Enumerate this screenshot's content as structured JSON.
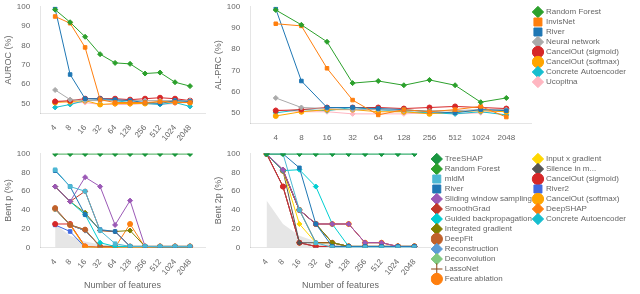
{
  "chart_data": [
    {
      "type": "line",
      "y_label": "AUROC (%)",
      "x": [
        4,
        8,
        16,
        32,
        64,
        128,
        256,
        512,
        1024,
        2048
      ],
      "xlim": [
        2,
        4096
      ],
      "xticks": [
        4,
        8,
        16,
        32,
        64,
        128,
        256,
        512,
        1024,
        2048
      ],
      "ylim": [
        45,
        100
      ],
      "yticks": [
        50,
        60,
        70,
        80,
        90,
        100
      ],
      "log": "x",
      "grid": false,
      "series": [
        {
          "name": "Random Forest",
          "color": "#2ca02c",
          "marker": "diamond",
          "values": [
            98.5,
            92.0,
            84.5,
            75.5,
            71.0,
            70.5,
            65.5,
            66.0,
            61.0,
            59.0
          ]
        },
        {
          "name": "InvisNet",
          "color": "#ff7f0e",
          "marker": "square",
          "values": [
            95.0,
            91.5,
            79.0,
            52.0,
            50.5,
            50.5,
            50.5,
            51.0,
            50.5,
            50.5
          ]
        },
        {
          "name": "River",
          "color": "#1f77b4",
          "marker": "square",
          "values": [
            99.0,
            65.0,
            52.5,
            52.5,
            52.0,
            51.5,
            50.5,
            50.0,
            51.5,
            51.0
          ]
        },
        {
          "name": "Neural network",
          "color": "#aaaaaa",
          "marker": "diamond",
          "values": [
            57.0,
            52.0,
            51.5,
            51.5,
            51.5,
            51.5,
            51.5,
            51.5,
            51.5,
            51.5
          ]
        },
        {
          "name": "CancelOut (sigmoid)",
          "color": "#d62728",
          "marker": "circle",
          "values": [
            51.0,
            51.5,
            52.5,
            52.5,
            52.5,
            52.0,
            52.5,
            53.0,
            52.5,
            51.5
          ]
        },
        {
          "name": "CancelOut (softmax)",
          "color": "#ffa500",
          "marker": "circle",
          "values": [
            50.5,
            51.0,
            51.5,
            49.5,
            50.0,
            50.0,
            50.0,
            51.0,
            51.0,
            50.5
          ]
        },
        {
          "name": "Concrete Autoencoder",
          "color": "#17becf",
          "marker": "diamond",
          "values": [
            48.0,
            49.5,
            51.5,
            52.0,
            51.5,
            50.5,
            50.0,
            49.5,
            50.5,
            48.5
          ]
        },
        {
          "name": "Ucopitna",
          "color": "#ffb6c1",
          "marker": "diamond",
          "values": [
            51.5,
            50.5,
            50.5,
            49.5,
            49.5,
            49.5,
            50.0,
            49.5,
            50.0,
            51.0
          ]
        }
      ]
    },
    {
      "type": "line",
      "y_label": "AL-PRC (%)",
      "x": [
        4,
        8,
        16,
        32,
        64,
        128,
        256,
        512,
        1024,
        2048
      ],
      "xlim": [
        2,
        4096
      ],
      "xticks": [
        4,
        8,
        16,
        32,
        64,
        128,
        256,
        512,
        1024,
        2048
      ],
      "ylim": [
        45,
        100
      ],
      "yticks": [
        50,
        60,
        70,
        80,
        90,
        100
      ],
      "log": "x",
      "grid": false,
      "legend": "right",
      "series": [
        {
          "name": "Random Forest",
          "color": "#2ca02c",
          "marker": "diamond",
          "values": [
            98.5,
            91.5,
            83.5,
            64.0,
            65.0,
            63.0,
            65.5,
            63.0,
            55.0,
            57.0
          ]
        },
        {
          "name": "InvisNet",
          "color": "#ff7f0e",
          "marker": "square",
          "values": [
            92.0,
            91.0,
            71.0,
            56.0,
            49.0,
            51.5,
            50.5,
            51.5,
            53.0,
            48.0
          ]
        },
        {
          "name": "River",
          "color": "#1f77b4",
          "marker": "square",
          "values": [
            99.0,
            65.0,
            52.5,
            52.5,
            52.0,
            51.5,
            50.5,
            50.0,
            51.5,
            51.0
          ]
        },
        {
          "name": "Neural network",
          "color": "#aaaaaa",
          "marker": "diamond",
          "values": [
            57.0,
            52.5,
            52.0,
            51.5,
            51.5,
            51.0,
            51.0,
            51.0,
            51.5,
            51.5
          ]
        },
        {
          "name": "CancelOut (sigmoid)",
          "color": "#d62728",
          "marker": "circle",
          "values": [
            51.0,
            51.5,
            52.5,
            52.5,
            52.5,
            52.0,
            52.5,
            53.0,
            52.5,
            52.0
          ]
        },
        {
          "name": "CancelOut (softmax)",
          "color": "#ffa500",
          "marker": "circle",
          "values": [
            48.5,
            50.5,
            51.5,
            51.5,
            50.5,
            50.5,
            49.5,
            50.5,
            51.0,
            50.5
          ]
        },
        {
          "name": "Concrete Autoencoder",
          "color": "#17becf",
          "marker": "diamond",
          "values": [
            50.0,
            51.5,
            51.0,
            52.5,
            51.5,
            50.5,
            50.0,
            49.5,
            50.5,
            49.0
          ]
        },
        {
          "name": "Ucopitna",
          "color": "#ffb6c1",
          "marker": "diamond",
          "values": [
            51.5,
            50.5,
            50.5,
            49.5,
            49.5,
            49.5,
            50.0,
            49.5,
            50.0,
            51.0
          ]
        }
      ]
    },
    {
      "type": "line",
      "y_label": "Bent p (%)",
      "x_label": "Number of features",
      "x": [
        4,
        8,
        16,
        32,
        64,
        128,
        256,
        512,
        1024,
        2048
      ],
      "xlim": [
        2,
        4096
      ],
      "xticks": [
        4,
        8,
        16,
        32,
        64,
        128,
        256,
        512,
        1024,
        2048
      ],
      "ylim": [
        0,
        100
      ],
      "yticks": [
        0,
        20,
        40,
        60,
        80,
        100
      ],
      "log": "x",
      "grid": false,
      "series": [
        {
          "type": "area",
          "color": "#808080",
          "values": [
            25,
            12.5,
            6.25,
            3.125,
            1.5625,
            0.78125,
            0.390625,
            0.195,
            0.097,
            0.048
          ]
        },
        {
          "name": "TreeSHAP",
          "color": "#1a9641",
          "marker": "diamond",
          "values": [
            100,
            100,
            100,
            100,
            100,
            100,
            100,
            100,
            100,
            100
          ]
        },
        {
          "name": "Random Forest",
          "color": "#2ca02c",
          "marker": "diamond",
          "values": [
            100,
            100,
            100,
            100,
            100,
            100,
            100,
            100,
            100,
            100
          ]
        },
        {
          "name": "mldM",
          "color": "#4db8d4",
          "marker": "square",
          "values": [
            83,
            65,
            60,
            18,
            4,
            1,
            1,
            1,
            1,
            1
          ]
        },
        {
          "name": "River",
          "color": "#1f77b4",
          "marker": "square",
          "values": [
            82,
            65,
            35,
            19,
            17,
            1,
            1,
            0,
            0,
            0
          ]
        },
        {
          "name": "Sliding window sampling",
          "color": "#9b59b6",
          "marker": "diamond",
          "values": [
            65,
            49,
            75,
            65,
            24,
            50,
            1,
            1,
            1,
            1
          ]
        },
        {
          "name": "SmoothGrad",
          "color": "#c0392b",
          "marker": "diamond",
          "values": [
            65,
            49,
            60,
            18,
            17,
            1,
            1,
            1,
            1,
            1
          ]
        },
        {
          "name": "Guided backpropagation",
          "color": "#00ced1",
          "marker": "diamond",
          "values": [
            65,
            49,
            35,
            5,
            1,
            1,
            1,
            1,
            1,
            1
          ]
        },
        {
          "name": "Integrated gradient",
          "color": "#808000",
          "marker": "diamond",
          "values": [
            65,
            49,
            37,
            18,
            17,
            18,
            1,
            1,
            1,
            1
          ]
        },
        {
          "name": "DeepFit",
          "color": "#c0612b",
          "marker": "circle",
          "values": [
            42,
            24,
            19,
            1,
            1,
            1,
            1,
            1,
            1,
            1
          ]
        },
        {
          "name": "Reconstruction",
          "color": "#5b9bd5",
          "marker": "diamond",
          "values": [
            41,
            24,
            18,
            1,
            1,
            1,
            1,
            1,
            1,
            1
          ]
        },
        {
          "name": "Deconvolution",
          "color": "#7fc97f",
          "marker": "diamond",
          "values": [
            41,
            24,
            19,
            1,
            1,
            1,
            1,
            1,
            1,
            1
          ]
        },
        {
          "name": "LassoNet",
          "color": "#8b4513",
          "marker": "plus",
          "values": [
            41,
            24,
            18,
            1,
            1,
            1,
            1,
            1,
            1,
            1
          ]
        },
        {
          "name": "Feature ablation",
          "color": "#ff7f0e",
          "marker": "circle",
          "values": [
            41,
            24,
            1,
            0,
            0,
            25,
            0,
            1,
            1,
            1
          ]
        },
        {
          "name": "Input x gradient",
          "color": "#ffd700",
          "marker": "diamond",
          "values": [
            41,
            24,
            0,
            0,
            0,
            0,
            0,
            0,
            0,
            0
          ]
        },
        {
          "name": "Silence in m...",
          "color": "#555555",
          "marker": "diamond",
          "values": [
            41,
            24,
            18,
            1,
            1,
            1,
            1,
            1,
            1,
            1
          ]
        },
        {
          "name": "CancelOut (sigmoid)",
          "color": "#d62728",
          "marker": "circle",
          "values": [
            25,
            25,
            1,
            0,
            0,
            0,
            0,
            0,
            0,
            0
          ]
        },
        {
          "name": "River2",
          "color": "#4169e1",
          "marker": "square",
          "values": [
            24,
            17,
            0,
            0,
            0,
            0,
            0,
            0,
            0,
            0
          ]
        }
      ]
    },
    {
      "type": "line",
      "y_label": "Bent 2p (%)",
      "x_label": "Number of features",
      "x": [
        4,
        8,
        16,
        32,
        64,
        128,
        256,
        512,
        1024,
        2048
      ],
      "xlim": [
        2,
        4096
      ],
      "xticks": [
        4,
        8,
        16,
        32,
        64,
        128,
        256,
        512,
        1024,
        2048
      ],
      "ylim": [
        0,
        100
      ],
      "yticks": [
        0,
        20,
        40,
        60,
        80,
        100
      ],
      "log": "x",
      "grid": false,
      "legend": "right",
      "series": [
        {
          "type": "area",
          "color": "#808080",
          "values": [
            50,
            25,
            12.5,
            6.25,
            3.125,
            1.5625,
            0.78125,
            0.390625,
            0.195,
            0.097
          ]
        },
        {
          "name": "TreeSHAP",
          "color": "#1a9641",
          "marker": "diamond",
          "values": [
            100,
            100,
            100,
            100,
            100,
            100,
            100,
            100,
            100,
            100
          ]
        },
        {
          "name": "Random Forest",
          "color": "#2ca02c",
          "marker": "diamond",
          "values": [
            100,
            100,
            100,
            100,
            100,
            100,
            100,
            100,
            100,
            100
          ]
        },
        {
          "name": "mldM",
          "color": "#4db8d4",
          "marker": "square",
          "values": [
            100,
            100,
            40,
            5,
            0,
            0,
            0,
            0,
            0,
            0
          ]
        },
        {
          "name": "River",
          "color": "#1f77b4",
          "marker": "square",
          "values": [
            100,
            100,
            85,
            25,
            1,
            1,
            1,
            1,
            1,
            1
          ]
        },
        {
          "name": "Sliding window sampling",
          "color": "#9b59b6",
          "marker": "diamond",
          "values": [
            100,
            83,
            40,
            25,
            25,
            25,
            5,
            5,
            1,
            1
          ]
        },
        {
          "name": "SmoothGrad",
          "color": "#c0392b",
          "marker": "diamond",
          "values": [
            100,
            83,
            40,
            25,
            25,
            25,
            5,
            5,
            1,
            1
          ]
        },
        {
          "name": "Guided backpropagation",
          "color": "#00ced1",
          "marker": "diamond",
          "values": [
            100,
            82,
            83,
            65,
            25,
            1,
            1,
            1,
            1,
            1
          ]
        },
        {
          "name": "Integrated gradient",
          "color": "#808000",
          "marker": "diamond",
          "values": [
            100,
            82,
            40,
            25,
            5,
            1,
            1,
            1,
            1,
            1
          ]
        },
        {
          "name": "DeepFit",
          "color": "#c0612b",
          "marker": "circle",
          "values": [
            100,
            82,
            40,
            25,
            5,
            1,
            1,
            1,
            1,
            1
          ]
        },
        {
          "name": "Reconstruction",
          "color": "#5b9bd5",
          "marker": "diamond",
          "values": [
            100,
            82,
            40,
            25,
            5,
            1,
            1,
            1,
            1,
            1
          ]
        },
        {
          "name": "Deconvolution",
          "color": "#7fc97f",
          "marker": "diamond",
          "values": [
            100,
            82,
            40,
            25,
            5,
            1,
            1,
            1,
            1,
            1
          ]
        },
        {
          "name": "LassoNet",
          "color": "#8b4513",
          "marker": "plus",
          "values": [
            100,
            82,
            40,
            5,
            5,
            1,
            1,
            1,
            1,
            1
          ]
        },
        {
          "name": "Feature ablation",
          "color": "#ff7f0e",
          "marker": "circle",
          "values": [
            100,
            82,
            40,
            25,
            25,
            25,
            5,
            5,
            1,
            1
          ]
        },
        {
          "name": "Input x gradient",
          "color": "#ffd700",
          "marker": "diamond",
          "values": [
            100,
            82,
            25,
            5,
            5,
            1,
            1,
            1,
            1,
            1
          ]
        },
        {
          "name": "Silence in m...",
          "color": "#555555",
          "marker": "diamond",
          "values": [
            100,
            82,
            5,
            5,
            5,
            1,
            1,
            1,
            1,
            1
          ]
        },
        {
          "name": "CancelOut (sigmoid)",
          "color": "#d62728",
          "marker": "circle",
          "values": [
            100,
            65,
            5,
            1,
            1,
            1,
            1,
            1,
            1,
            1
          ]
        },
        {
          "name": "River2",
          "color": "#4169e1",
          "marker": "square",
          "values": [
            100,
            65,
            5,
            1,
            1,
            1,
            1,
            1,
            1,
            1
          ]
        },
        {
          "name": "CancelOut (softmax)",
          "color": "#ffa500",
          "marker": "circle",
          "values": [
            100,
            65,
            5,
            1,
            1,
            1,
            1,
            1,
            1,
            1
          ]
        },
        {
          "name": "DeepSHAP",
          "color": "#ff7f0e",
          "marker": "diamond",
          "values": [
            100,
            65,
            5,
            1,
            1,
            1,
            1,
            1,
            1,
            1
          ]
        },
        {
          "name": "Concrete Autoencoder",
          "color": "#17becf",
          "marker": "diamond",
          "values": [
            100,
            100,
            100,
            100,
            100,
            100,
            100,
            100,
            100,
            100
          ]
        }
      ]
    }
  ]
}
